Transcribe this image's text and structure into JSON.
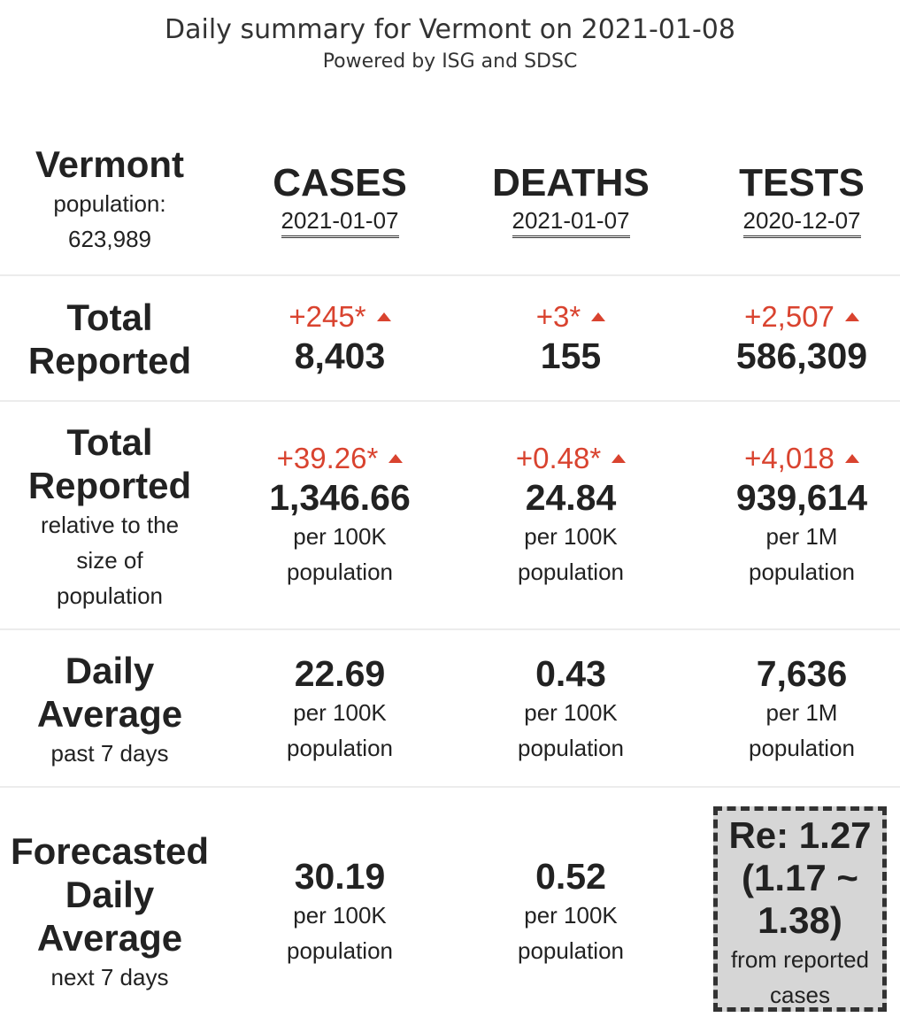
{
  "header": {
    "title": "Daily summary for Vermont on 2021-01-08",
    "subtitle": "Powered by ISG and SDSC"
  },
  "state": {
    "name": "Vermont",
    "population_label": "population:",
    "population_value": "623,989"
  },
  "columns": [
    {
      "name": "CASES",
      "date": "2021-01-07"
    },
    {
      "name": "DEATHS",
      "date": "2021-01-07"
    },
    {
      "name": "TESTS",
      "date": "2020-12-07"
    }
  ],
  "rows": {
    "total_reported": {
      "label_line1": "Total",
      "label_line2": "Reported",
      "cells": [
        {
          "delta": "+245*",
          "value": "8,403"
        },
        {
          "delta": "+3*",
          "value": "155"
        },
        {
          "delta": "+2,507",
          "value": "586,309"
        }
      ]
    },
    "relative": {
      "label_line1": "Total",
      "label_line2": "Reported",
      "sub_line1": "relative to the",
      "sub_line2": "size of",
      "sub_line3": "population",
      "cells": [
        {
          "delta": "+39.26*",
          "value": "1,346.66",
          "unit1": "per 100K",
          "unit2": "population"
        },
        {
          "delta": "+0.48*",
          "value": "24.84",
          "unit1": "per 100K",
          "unit2": "population"
        },
        {
          "delta": "+4,018",
          "value": "939,614",
          "unit1": "per 1M",
          "unit2": "population"
        }
      ]
    },
    "daily_average": {
      "label_line1": "Daily",
      "label_line2": "Average",
      "sub_line1": "past 7 days",
      "cells": [
        {
          "value": "22.69",
          "unit1": "per 100K",
          "unit2": "population"
        },
        {
          "value": "0.43",
          "unit1": "per 100K",
          "unit2": "population"
        },
        {
          "value": "7,636",
          "unit1": "per 1M",
          "unit2": "population"
        }
      ]
    },
    "forecast": {
      "label_line1": "Forecasted",
      "label_line2": "Daily",
      "label_line3": "Average",
      "sub_line1": "next 7 days",
      "cells": [
        {
          "value": "30.19",
          "unit1": "per 100K",
          "unit2": "population"
        },
        {
          "value": "0.52",
          "unit1": "per 100K",
          "unit2": "population"
        }
      ],
      "re": {
        "line1": "Re: 1.27",
        "line2": "(1.17 ~",
        "line3": "1.38)",
        "sub1": "from reported",
        "sub2": "cases"
      }
    }
  },
  "colors": {
    "increase": "#d9432f",
    "re_box_bg": "#d6d6d6"
  },
  "icons": {
    "increase": "triangle-up-icon"
  }
}
